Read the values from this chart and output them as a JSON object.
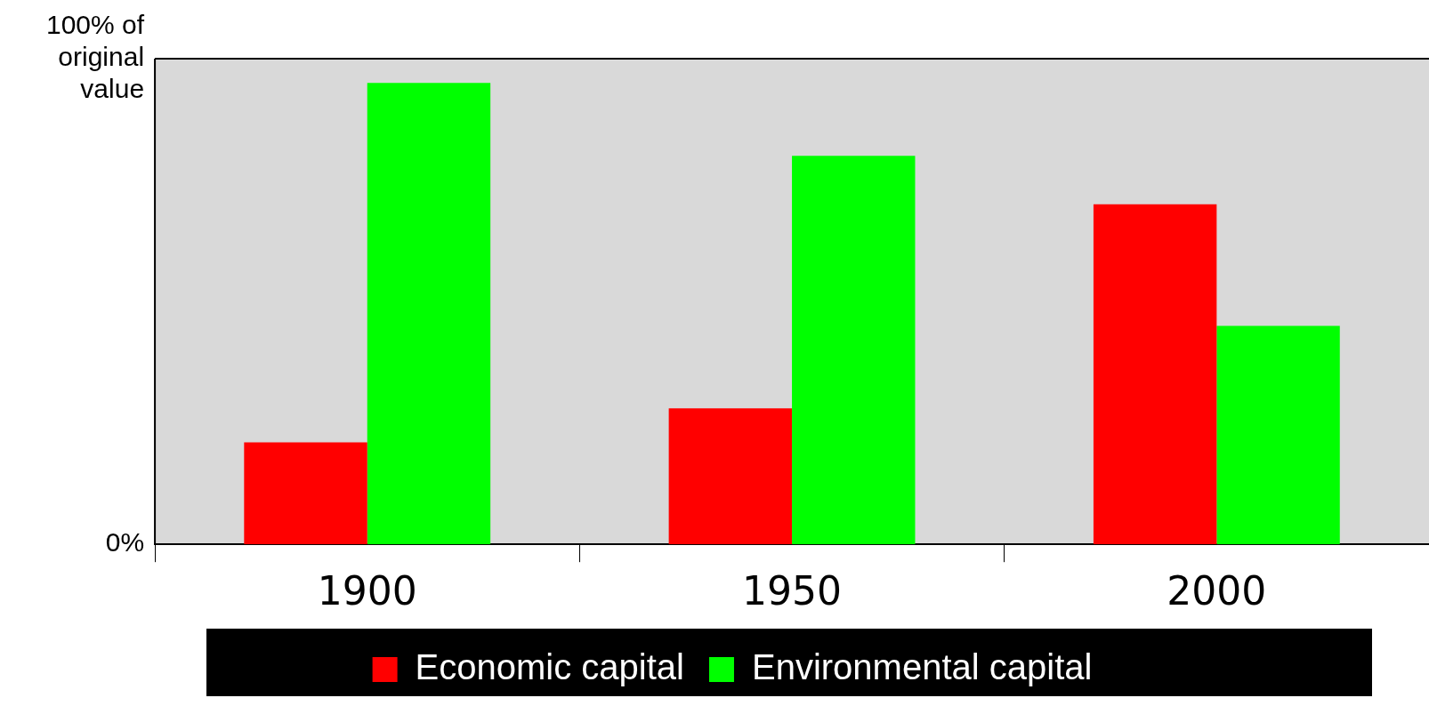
{
  "chart_data": {
    "type": "bar",
    "categories": [
      "1900",
      "1950",
      "2000"
    ],
    "series": [
      {
        "name": "Economic capital",
        "color": "#ff0000",
        "values": [
          21,
          28,
          70
        ]
      },
      {
        "name": "Environmental capital",
        "color": "#00ff00",
        "values": [
          95,
          80,
          45
        ]
      }
    ],
    "ylim": [
      0,
      100
    ],
    "yticks": [
      {
        "value": 0,
        "label": "0%"
      },
      {
        "value": 100,
        "label": "100% of original value"
      }
    ],
    "grid": false,
    "legend": "bottom"
  }
}
